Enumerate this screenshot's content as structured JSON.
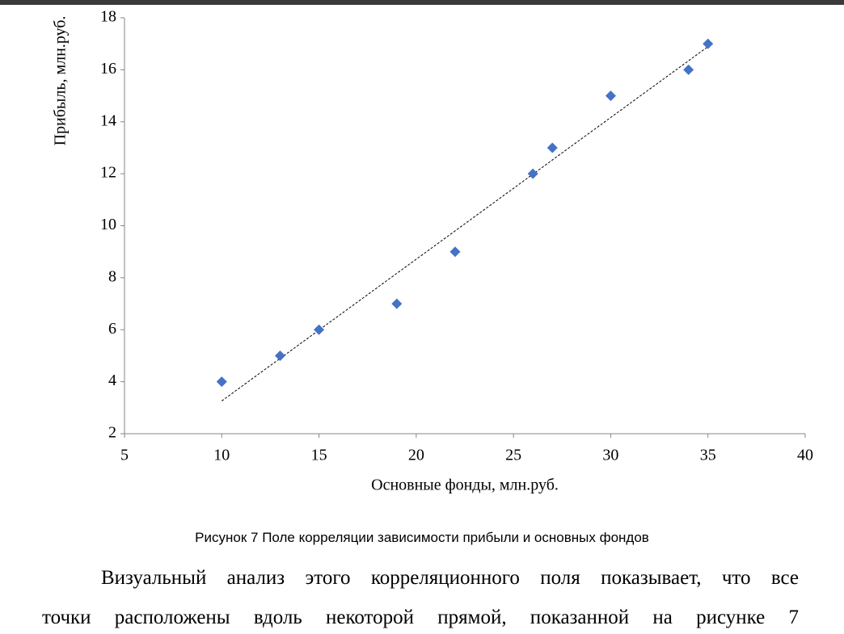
{
  "chart_data": {
    "type": "scatter",
    "x_label": "Основные фонды, млн.руб.",
    "y_label": "Прибыль, млн.руб.",
    "x": [
      10,
      13,
      15,
      19,
      22,
      26,
      27,
      30,
      34,
      35
    ],
    "values": [
      4,
      5,
      6,
      7,
      9,
      12,
      13,
      15,
      16,
      17
    ],
    "color": "#4472c4",
    "trendline": {
      "x": [
        10,
        35
      ],
      "values": [
        3.26,
        16.89
      ]
    },
    "xlim": [
      5,
      40
    ],
    "xticks": [
      5,
      10,
      15,
      20,
      25,
      30,
      35,
      40
    ],
    "ylim": [
      2,
      18
    ],
    "yticks": [
      2,
      4,
      6,
      8,
      10,
      12,
      14,
      16,
      18
    ],
    "grid": false
  },
  "caption": "Рисунок 7 Поле корреляции зависимости прибыли и основных фондов",
  "paragraph": [
    "Визуальный анализ этого корреляционного поля показывает, что все",
    "точки расположены вдоль некоторой прямой, показанной на рисунке 7"
  ]
}
